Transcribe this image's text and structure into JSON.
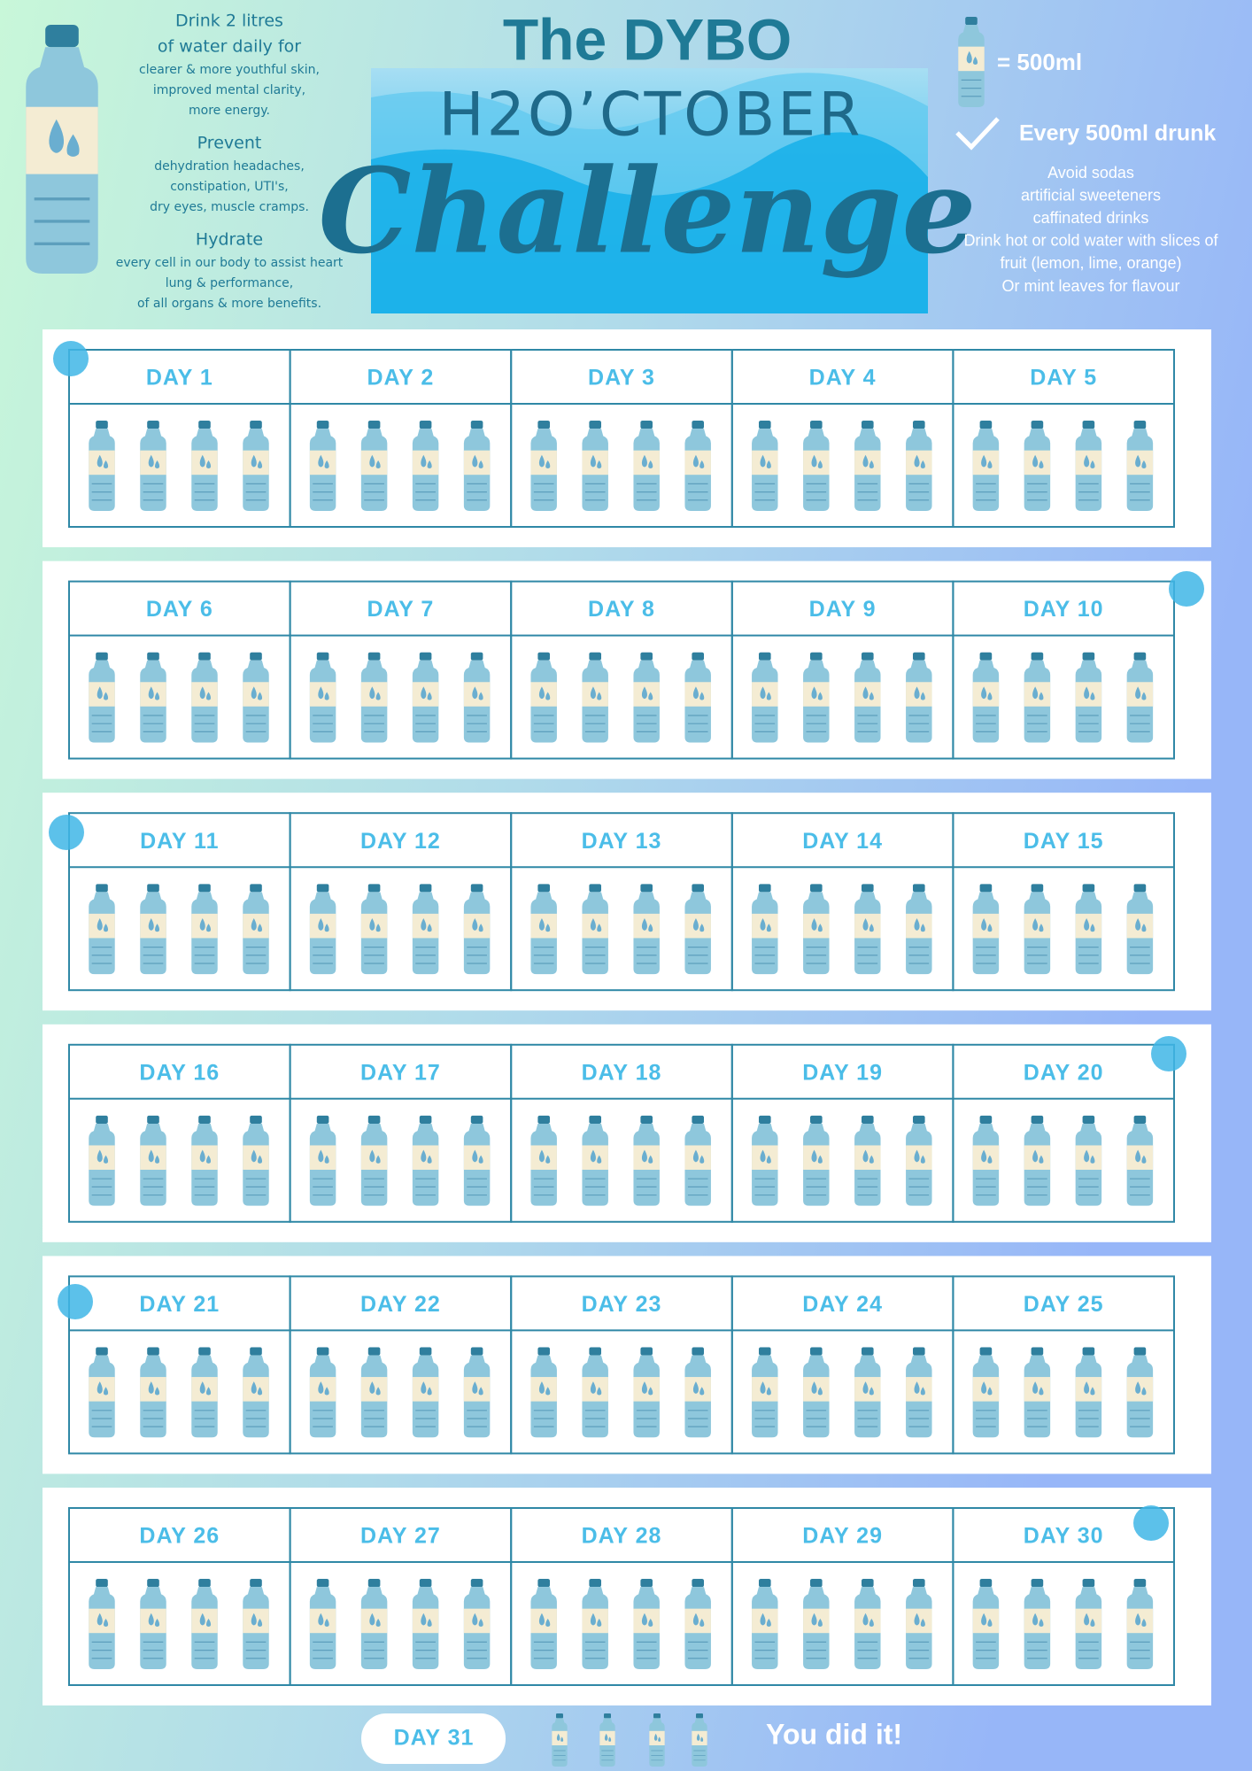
{
  "intro": [
    {
      "heading": [
        "Drink 2 litres",
        "of water daily for"
      ],
      "lines": [
        "clearer & more youthful skin,",
        "improved mental clarity,",
        "more energy."
      ]
    },
    {
      "heading": [
        "Prevent"
      ],
      "lines": [
        "dehydration headaches,",
        "constipation, UTI's,",
        "dry eyes, muscle cramps."
      ]
    },
    {
      "heading": [
        "Hydrate"
      ],
      "lines": [
        "every cell in our body to assist heart",
        "lung & performance,",
        "of all organs & more benefits."
      ]
    }
  ],
  "title": {
    "line1": "The DYBO",
    "line2": "H2O’CTOBER",
    "line3": "Challenge"
  },
  "legend": {
    "unit": "=  500ml",
    "check": "Every 500ml drunk",
    "tips": [
      "Avoid sodas",
      "artificial sweeteners",
      "caffinated drinks",
      "Drink hot or cold water with slices of",
      "fruit (lemon, lime, orange)",
      "Or mint leaves for flavour"
    ]
  },
  "days": [
    "DAY 1",
    "DAY 2",
    "DAY 3",
    "DAY 4",
    "DAY 5",
    "DAY 6",
    "DAY 7",
    "DAY 8",
    "DAY 9",
    "DAY 10",
    "DAY 11",
    "DAY 12",
    "DAY 13",
    "DAY 14",
    "DAY 15",
    "DAY 16",
    "DAY 17",
    "DAY 18",
    "DAY 19",
    "DAY 20",
    "DAY 21",
    "DAY 22",
    "DAY 23",
    "DAY 24",
    "DAY 25",
    "DAY 26",
    "DAY 27",
    "DAY 28",
    "DAY 29",
    "DAY 30"
  ],
  "final": {
    "day": "DAY 31",
    "message": "You did it!"
  }
}
